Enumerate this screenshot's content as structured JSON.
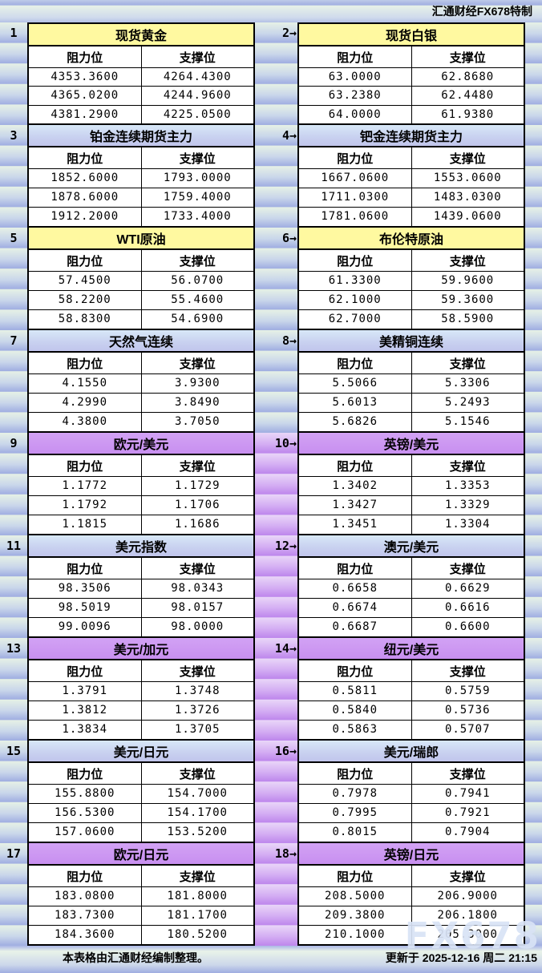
{
  "header": {
    "brand": "汇通财经FX678特制"
  },
  "labels": {
    "resistance": "阻力位",
    "support": "支撑位"
  },
  "colors": {
    "title_yellow": "#FFF9A0",
    "title_blue_top": "#D8E8F8",
    "title_blue_bottom": "#C1C5EC",
    "title_purple": "#C88FF0",
    "band_green_top": "#E6F1E6",
    "band_green_bottom": "#9FADE1",
    "band_purple_top": "#E9D6F8",
    "band_purple_bottom": "#BD86EC",
    "table_border": "#000000"
  },
  "footer": {
    "left": "本表格由汇通财经编制整理。",
    "right": "更新于 2025-12-16 周二 21:15"
  },
  "watermark": "FX678",
  "chart_data": {
    "type": "table",
    "title": "汇通财经FX678特制",
    "columns": [
      "阻力位",
      "支撑位"
    ],
    "tables": [
      {
        "index_label": "1",
        "title": "现货黄金",
        "color": "yellow",
        "gutter": "green",
        "rows": [
          [
            "4353.3600",
            "4264.4300"
          ],
          [
            "4365.0200",
            "4244.9600"
          ],
          [
            "4381.2900",
            "4225.0500"
          ]
        ]
      },
      {
        "index_label": "2→",
        "title": "现货白银",
        "color": "yellow",
        "gutter": "green",
        "rows": [
          [
            "63.0000",
            "62.8680"
          ],
          [
            "63.2380",
            "62.4480"
          ],
          [
            "64.0000",
            "61.9380"
          ]
        ]
      },
      {
        "index_label": "3",
        "title": "铂金连续期货主力",
        "color": "blue",
        "gutter": "green",
        "rows": [
          [
            "1852.6000",
            "1793.0000"
          ],
          [
            "1878.6000",
            "1759.4000"
          ],
          [
            "1912.2000",
            "1733.4000"
          ]
        ]
      },
      {
        "index_label": "4→",
        "title": "钯金连续期货主力",
        "color": "blue",
        "gutter": "green",
        "rows": [
          [
            "1667.0600",
            "1553.0600"
          ],
          [
            "1711.0300",
            "1483.0300"
          ],
          [
            "1781.0600",
            "1439.0600"
          ]
        ]
      },
      {
        "index_label": "5",
        "title": "WTI原油",
        "color": "yellow",
        "gutter": "green",
        "rows": [
          [
            "57.4500",
            "56.0700"
          ],
          [
            "58.2200",
            "55.4600"
          ],
          [
            "58.8300",
            "54.6900"
          ]
        ]
      },
      {
        "index_label": "6→",
        "title": "布伦特原油",
        "color": "yellow",
        "gutter": "green",
        "rows": [
          [
            "61.3300",
            "59.9600"
          ],
          [
            "62.1000",
            "59.3600"
          ],
          [
            "62.7000",
            "58.5900"
          ]
        ]
      },
      {
        "index_label": "7",
        "title": "天然气连续",
        "color": "blue",
        "gutter": "green",
        "rows": [
          [
            "4.1550",
            "3.9300"
          ],
          [
            "4.2990",
            "3.8490"
          ],
          [
            "4.3800",
            "3.7050"
          ]
        ]
      },
      {
        "index_label": "8→",
        "title": "美精铜连续",
        "color": "blue",
        "gutter": "green",
        "rows": [
          [
            "5.5066",
            "5.3306"
          ],
          [
            "5.6013",
            "5.2493"
          ],
          [
            "5.6826",
            "5.1546"
          ]
        ]
      },
      {
        "index_label": "9",
        "title": "欧元/美元",
        "color": "purple",
        "gutter": "purple",
        "rows": [
          [
            "1.1772",
            "1.1729"
          ],
          [
            "1.1792",
            "1.1706"
          ],
          [
            "1.1815",
            "1.1686"
          ]
        ]
      },
      {
        "index_label": "10→",
        "title": "英镑/美元",
        "color": "purple",
        "gutter": "purple",
        "rows": [
          [
            "1.3402",
            "1.3353"
          ],
          [
            "1.3427",
            "1.3329"
          ],
          [
            "1.3451",
            "1.3304"
          ]
        ]
      },
      {
        "index_label": "11",
        "title": "美元指数",
        "color": "blue",
        "gutter": "purple",
        "rows": [
          [
            "98.3506",
            "98.0343"
          ],
          [
            "98.5019",
            "98.0157"
          ],
          [
            "99.0096",
            "98.0000"
          ]
        ]
      },
      {
        "index_label": "12→",
        "title": "澳元/美元",
        "color": "blue",
        "gutter": "purple",
        "rows": [
          [
            "0.6658",
            "0.6629"
          ],
          [
            "0.6674",
            "0.6616"
          ],
          [
            "0.6687",
            "0.6600"
          ]
        ]
      },
      {
        "index_label": "13",
        "title": "美元/加元",
        "color": "purple",
        "gutter": "purple",
        "rows": [
          [
            "1.3791",
            "1.3748"
          ],
          [
            "1.3812",
            "1.3726"
          ],
          [
            "1.3834",
            "1.3705"
          ]
        ]
      },
      {
        "index_label": "14→",
        "title": "纽元/美元",
        "color": "purple",
        "gutter": "purple",
        "rows": [
          [
            "0.5811",
            "0.5759"
          ],
          [
            "0.5840",
            "0.5736"
          ],
          [
            "0.5863",
            "0.5707"
          ]
        ]
      },
      {
        "index_label": "15",
        "title": "美元/日元",
        "color": "blue",
        "gutter": "purple",
        "rows": [
          [
            "155.8800",
            "154.7000"
          ],
          [
            "156.5300",
            "154.1700"
          ],
          [
            "157.0600",
            "153.5200"
          ]
        ]
      },
      {
        "index_label": "16→",
        "title": "美元/瑞郎",
        "color": "blue",
        "gutter": "purple",
        "rows": [
          [
            "0.7978",
            "0.7941"
          ],
          [
            "0.7995",
            "0.7921"
          ],
          [
            "0.8015",
            "0.7904"
          ]
        ]
      },
      {
        "index_label": "17",
        "title": "欧元/日元",
        "color": "purple",
        "gutter": "purple",
        "rows": [
          [
            "183.0800",
            "181.8000"
          ],
          [
            "183.7300",
            "181.1700"
          ],
          [
            "184.3600",
            "180.5200"
          ]
        ]
      },
      {
        "index_label": "18→",
        "title": "英镑/日元",
        "color": "purple",
        "gutter": "purple",
        "rows": [
          [
            "208.5000",
            "206.9000"
          ],
          [
            "209.3800",
            "206.1800"
          ],
          [
            "210.1000",
            "205.3000"
          ]
        ]
      }
    ]
  }
}
